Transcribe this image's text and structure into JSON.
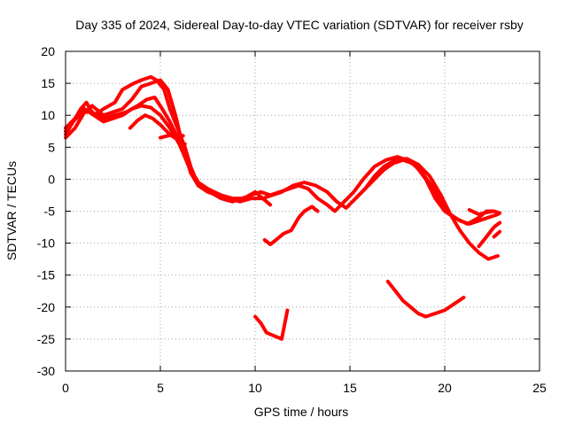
{
  "chart_data": {
    "type": "line",
    "title": "Day 335 of 2024, Sidereal Day-to-day VTEC variation (SDTVAR) for receiver rsby",
    "xlabel": "GPS time / hours",
    "ylabel": "SDTVAR / TECUs",
    "xlim": [
      0,
      25
    ],
    "ylim": [
      -30,
      20
    ],
    "xticks": [
      0,
      5,
      10,
      15,
      20,
      25
    ],
    "yticks": [
      -30,
      -25,
      -20,
      -15,
      -10,
      -5,
      0,
      5,
      10,
      15,
      20
    ],
    "grid": true,
    "color": "#ff0000",
    "series": [
      {
        "name": "trace-1",
        "x": [
          0.0,
          0.4,
          0.8,
          1.1,
          1.5,
          2.0,
          2.6,
          3.0,
          3.6,
          4.0,
          4.5,
          4.8,
          5.2,
          5.5,
          5.9,
          6.3,
          6.6,
          7.0,
          7.6,
          8.2,
          8.8,
          9.3,
          9.8,
          10.3,
          10.8,
          11.3,
          11.8,
          12.3,
          12.8,
          13.3,
          13.8,
          14.2,
          14.7,
          15.2,
          15.7,
          16.3,
          16.9,
          17.5,
          18.0,
          18.5,
          19.0,
          19.5,
          20.0,
          20.5,
          21.2,
          21.8,
          22.2,
          22.6
        ],
        "y": [
          7,
          9,
          11,
          12,
          10,
          11,
          12,
          14,
          15,
          15.5,
          16,
          15.5,
          14,
          11,
          8,
          5,
          2,
          -1,
          -2,
          -3,
          -3.5,
          -3,
          -2.5,
          -2,
          -2.5,
          -2,
          -1.5,
          -1,
          -1.5,
          -3,
          -4,
          -5,
          -3.5,
          -2,
          0,
          2,
          3,
          3.5,
          3,
          2,
          0,
          -3,
          -5,
          -6,
          -7,
          -6,
          -5,
          -5
        ]
      },
      {
        "name": "trace-2",
        "x": [
          0.0,
          0.5,
          1.0,
          1.4,
          2.0,
          2.5,
          3.0,
          3.5,
          4.0,
          4.5,
          5.0,
          5.4,
          5.8,
          6.2,
          6.6,
          7.0,
          7.5,
          8.0,
          8.6,
          9.2,
          9.8,
          10.4,
          10.9,
          11.4,
          12.0,
          12.6,
          13.2,
          13.8,
          14.3,
          14.8,
          15.3,
          15.8,
          16.3,
          16.8,
          17.3,
          17.8,
          18.3,
          18.8,
          19.3,
          19.8,
          20.3,
          20.8,
          21.3,
          21.8,
          22.3,
          22.8
        ],
        "y": [
          6.5,
          8,
          10.5,
          11.5,
          10,
          10.5,
          11,
          12.5,
          14.5,
          15,
          15.5,
          14,
          10,
          5,
          1,
          -1,
          -2,
          -2.5,
          -3,
          -3.5,
          -3,
          -3,
          -2.5,
          -2,
          -1,
          -0.5,
          -1,
          -2,
          -3.5,
          -4.5,
          -3,
          -1.5,
          0,
          1.5,
          2.5,
          3,
          2.5,
          1,
          -1,
          -3.5,
          -5.5,
          -6.5,
          -7,
          -6.5,
          -6,
          -5.5
        ]
      },
      {
        "name": "trace-3",
        "x": [
          0.0,
          0.4,
          0.9,
          1.4,
          2.0,
          2.6,
          3.2,
          3.8,
          4.3,
          4.7,
          5.1,
          5.5,
          6.0,
          6.5,
          7.0,
          7.5,
          8.2,
          8.8,
          9.4,
          10.0,
          10.4,
          10.8
        ],
        "y": [
          7.5,
          9,
          10.5,
          10.5,
          9.5,
          10,
          10.5,
          11.5,
          12.5,
          12.8,
          11,
          9,
          6,
          2,
          -0.5,
          -1.5,
          -2.5,
          -3,
          -3,
          -2,
          -3,
          -4
        ]
      },
      {
        "name": "trace-4",
        "x": [
          0.0,
          0.5,
          1.0,
          1.5,
          2.0,
          2.5,
          3.0,
          3.5,
          4.0,
          4.5,
          5.0,
          5.5,
          6.0,
          6.5,
          7.0,
          7.3
        ],
        "y": [
          8,
          9.5,
          11,
          10,
          9,
          9.5,
          10,
          11,
          11.5,
          11.2,
          10,
          8,
          5.5,
          2,
          -0.5,
          -1.5
        ]
      },
      {
        "name": "trace-5",
        "x": [
          3.4,
          3.8,
          4.2,
          4.6,
          5.0,
          5.5,
          6.0,
          6.3
        ],
        "y": [
          8,
          9.2,
          10,
          9.5,
          8.5,
          7,
          6,
          5.5
        ]
      },
      {
        "name": "trace-6",
        "x": [
          5.0,
          5.4,
          5.8,
          6.2
        ],
        "y": [
          6.5,
          6.8,
          7,
          6.8
        ]
      },
      {
        "name": "trace-7",
        "x": [
          10.0,
          10.3,
          10.6,
          11.0,
          11.4,
          11.7
        ],
        "y": [
          -21.5,
          -22.5,
          -24,
          -24.5,
          -25,
          -20.5
        ]
      },
      {
        "name": "trace-8",
        "x": [
          10.5,
          10.8,
          11.1,
          11.5,
          11.9,
          12.3,
          12.6,
          13.0,
          13.3
        ],
        "y": [
          -9.5,
          -10.2,
          -9.5,
          -8.5,
          -8,
          -6,
          -5,
          -4.3,
          -5
        ]
      },
      {
        "name": "trace-9",
        "x": [
          17.0,
          17.4,
          17.8,
          18.2,
          18.6,
          19.0,
          19.5,
          20.0,
          20.5,
          21.0
        ],
        "y": [
          -16,
          -17.5,
          -19,
          -20,
          -21,
          -21.5,
          -21,
          -20.5,
          -19.5,
          -18.5
        ]
      },
      {
        "name": "trace-10",
        "x": [
          15.3,
          15.8,
          16.3,
          16.8,
          17.4,
          18.0,
          18.6,
          19.2,
          19.8,
          20.3,
          20.8,
          21.3,
          21.8,
          22.3,
          22.8
        ],
        "y": [
          -3,
          -1.5,
          0.5,
          2,
          3,
          3.2,
          2.3,
          0.5,
          -2.5,
          -5.5,
          -8,
          -10,
          -11.5,
          -12.5,
          -12
        ]
      },
      {
        "name": "trace-11",
        "x": [
          21.3,
          21.8,
          22.2,
          22.6,
          22.9
        ],
        "y": [
          -4.8,
          -5.5,
          -5.2,
          -5,
          -5.3
        ]
      },
      {
        "name": "trace-12",
        "x": [
          21.8,
          22.2,
          22.6,
          22.9
        ],
        "y": [
          -10.5,
          -9,
          -7.5,
          -6.8
        ]
      },
      {
        "name": "trace-13",
        "x": [
          22.6,
          22.9
        ],
        "y": [
          -9,
          -8.2
        ]
      }
    ]
  }
}
